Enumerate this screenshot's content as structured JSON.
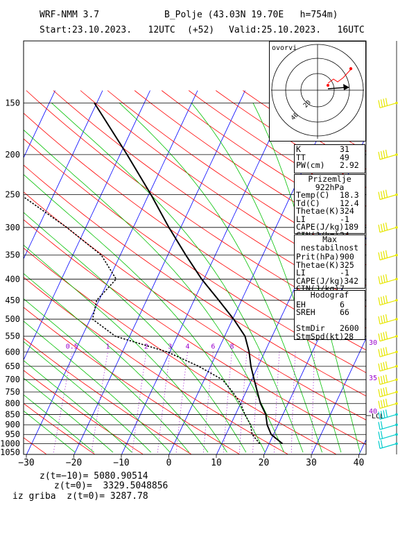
{
  "header": {
    "model": "WRF-NMM 3.7",
    "station": "B_Polje (43.03N 19.70E   h=754m)",
    "start": "Start:23.10.2023.   12UTC",
    "offset": "(+52)",
    "valid": "Valid:25.10.2023.   16UTC"
  },
  "chart_data": {
    "type": "line",
    "title": "",
    "xlabel": "",
    "ylabel": "",
    "x_ticks": [
      "−30",
      "−20",
      "−10",
      "0",
      "10",
      "20",
      "30",
      "40"
    ],
    "y_ticks": [
      "150",
      "200",
      "250",
      "300",
      "350",
      "400",
      "450",
      "500",
      "550",
      "600",
      "650",
      "700",
      "750",
      "800",
      "850",
      "900",
      "950",
      "1000",
      "1050"
    ],
    "xlim": [
      -30,
      42
    ],
    "ylim": [
      1050,
      150
    ],
    "mixing_ratio_labels": [
      "0.5",
      "1",
      "2",
      "3",
      "4",
      "6",
      "8"
    ],
    "right_labels": [
      "30",
      "35",
      "40"
    ],
    "lcl_label": "LCL",
    "series": [
      {
        "style": "solid",
        "points": [
          [
            22.8,
            1000
          ],
          [
            19.5,
            950
          ],
          [
            17.7,
            900
          ],
          [
            16.4,
            850
          ],
          [
            14.2,
            800
          ],
          [
            12.4,
            750
          ],
          [
            10.5,
            700
          ],
          [
            8.5,
            650
          ],
          [
            6.7,
            600
          ],
          [
            4.3,
            550
          ],
          [
            0.2,
            500
          ],
          [
            -4.8,
            450
          ],
          [
            -10.5,
            400
          ],
          [
            -16.2,
            350
          ],
          [
            -22.5,
            300
          ],
          [
            -29.5,
            250
          ],
          [
            -38.5,
            200
          ],
          [
            -50.5,
            150
          ]
        ]
      },
      {
        "style": "dotted",
        "points": [
          [
            18.0,
            1000
          ],
          [
            15.5,
            950
          ],
          [
            14.2,
            900
          ],
          [
            12.0,
            850
          ],
          [
            10.0,
            800
          ],
          [
            7.2,
            750
          ],
          [
            3.8,
            700
          ],
          [
            -2.5,
            650
          ],
          [
            -10.5,
            600
          ],
          [
            -23.0,
            550
          ],
          [
            -29.5,
            500
          ],
          [
            -30.5,
            450
          ],
          [
            -28.5,
            400
          ],
          [
            -34.0,
            350
          ],
          [
            -44.0,
            300
          ],
          [
            -57.0,
            250
          ],
          [
            -73.0,
            200
          ],
          [
            -67.0,
            150
          ]
        ]
      }
    ]
  },
  "hodograph": {
    "label": "ovorvi",
    "rings": [
      "20",
      "40"
    ]
  },
  "index_box": {
    "rows": [
      [
        "K",
        "31"
      ],
      [
        "TT",
        "49"
      ],
      [
        "PW(cm)",
        "2.92"
      ]
    ]
  },
  "surface_box": {
    "title": "Prizemlje 922hPa",
    "rows": [
      [
        "Temp(C)",
        "18.3"
      ],
      [
        "Td(C)",
        "12.4"
      ],
      [
        "Thetae(K)",
        "324"
      ],
      [
        "LI",
        "-1"
      ],
      [
        "CAPE(J/kg)",
        "189"
      ],
      [
        "CIN(J/kg)",
        "24"
      ]
    ]
  },
  "maxinst_box": {
    "title": "Max nestabilnost",
    "rows": [
      [
        "Prit(hPa)",
        "900"
      ],
      [
        "Thetae(K)",
        "325"
      ],
      [
        "LI",
        "-1"
      ],
      [
        "CAPE(J/kg)",
        "342"
      ],
      [
        "CIN(J/kg)",
        "7"
      ]
    ]
  },
  "hodograf_box": {
    "title": "Hodograf",
    "rows": [
      [
        "EH",
        "6"
      ],
      [
        "SREH",
        "66"
      ],
      [
        "",
        ""
      ],
      [
        "StmDir",
        "2600"
      ],
      [
        "StmSpd(kt)",
        "28"
      ]
    ]
  },
  "footer": {
    "line1_label": "z(t=−10)=",
    "line1_value": "5080.90514",
    "line2_label": "z(t=0)=",
    "line2_value": "3329.5048856",
    "line3_label": "iz griba  z(t=0)=",
    "line3_value": "3287.78"
  },
  "colors": {
    "isotherm": "#0000ff",
    "dry_adiabat": "#ff0000",
    "moist_adiabat": "#00c000",
    "mixing_ratio": "#9900cc",
    "wind_barb": "#e6e600",
    "wind_barb_low": "#00cccc"
  }
}
